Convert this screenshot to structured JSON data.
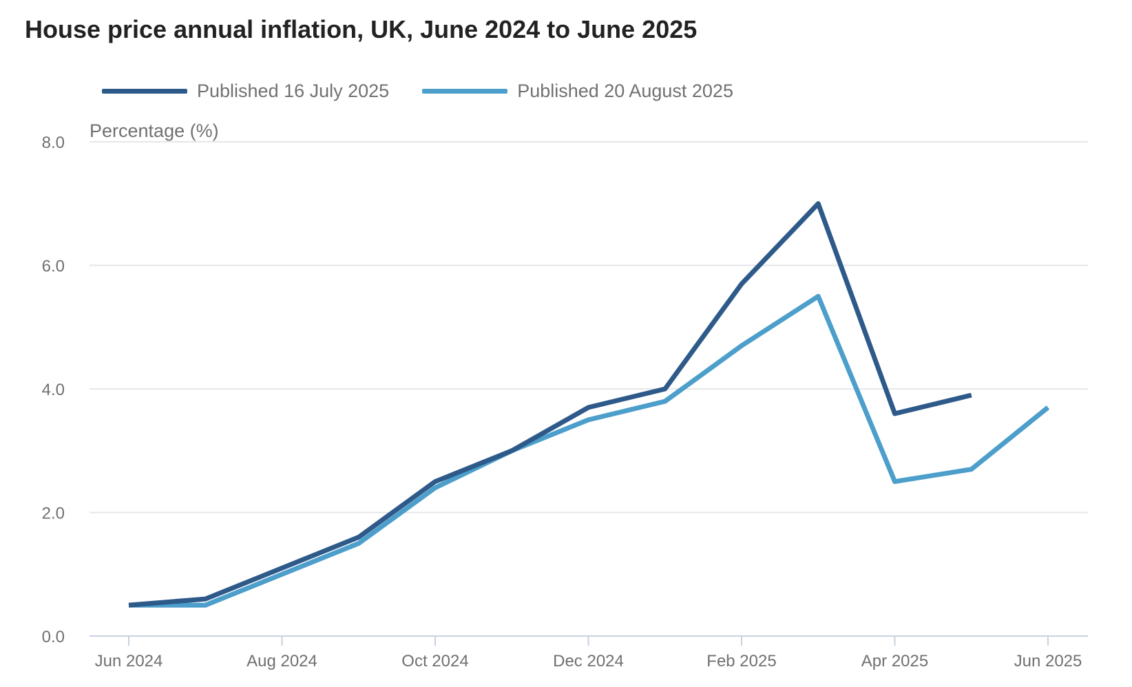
{
  "chart_data": {
    "type": "line",
    "title": "House price annual inflation, UK, June 2024 to June 2025",
    "ylabel": "Percentage (%)",
    "xlabel": "",
    "ylim": [
      0,
      8
    ],
    "yticks": [
      "0.0",
      "2.0",
      "4.0",
      "6.0",
      "8.0"
    ],
    "ytick_values": [
      0,
      2,
      4,
      6,
      8
    ],
    "grid": true,
    "legend_position": "top-left",
    "x": [
      "Jun 2024",
      "Jul 2024",
      "Aug 2024",
      "Sep 2024",
      "Oct 2024",
      "Nov 2024",
      "Dec 2024",
      "Jan 2025",
      "Feb 2025",
      "Mar 2025",
      "Apr 2025",
      "May 2025",
      "Jun 2025"
    ],
    "xtick_labels": [
      "Jun 2024",
      "Aug 2024",
      "Oct 2024",
      "Dec 2024",
      "Feb 2025",
      "Apr 2025",
      "Jun 2025"
    ],
    "series": [
      {
        "name": "Published 16 July 2025",
        "color": "#2e5a8a",
        "values": [
          0.5,
          0.6,
          1.1,
          1.6,
          2.5,
          3.0,
          3.7,
          4.0,
          5.7,
          7.0,
          3.6,
          3.9,
          null
        ]
      },
      {
        "name": "Published 20 August 2025",
        "color": "#4c9ecb",
        "values": [
          0.5,
          0.5,
          1.0,
          1.5,
          2.4,
          3.0,
          3.5,
          3.8,
          4.7,
          5.5,
          2.5,
          2.7,
          3.7
        ]
      }
    ]
  },
  "colors": {
    "gridline": "#e4e6ea",
    "axis": "#c7d2e0",
    "text_muted": "#707071"
  }
}
